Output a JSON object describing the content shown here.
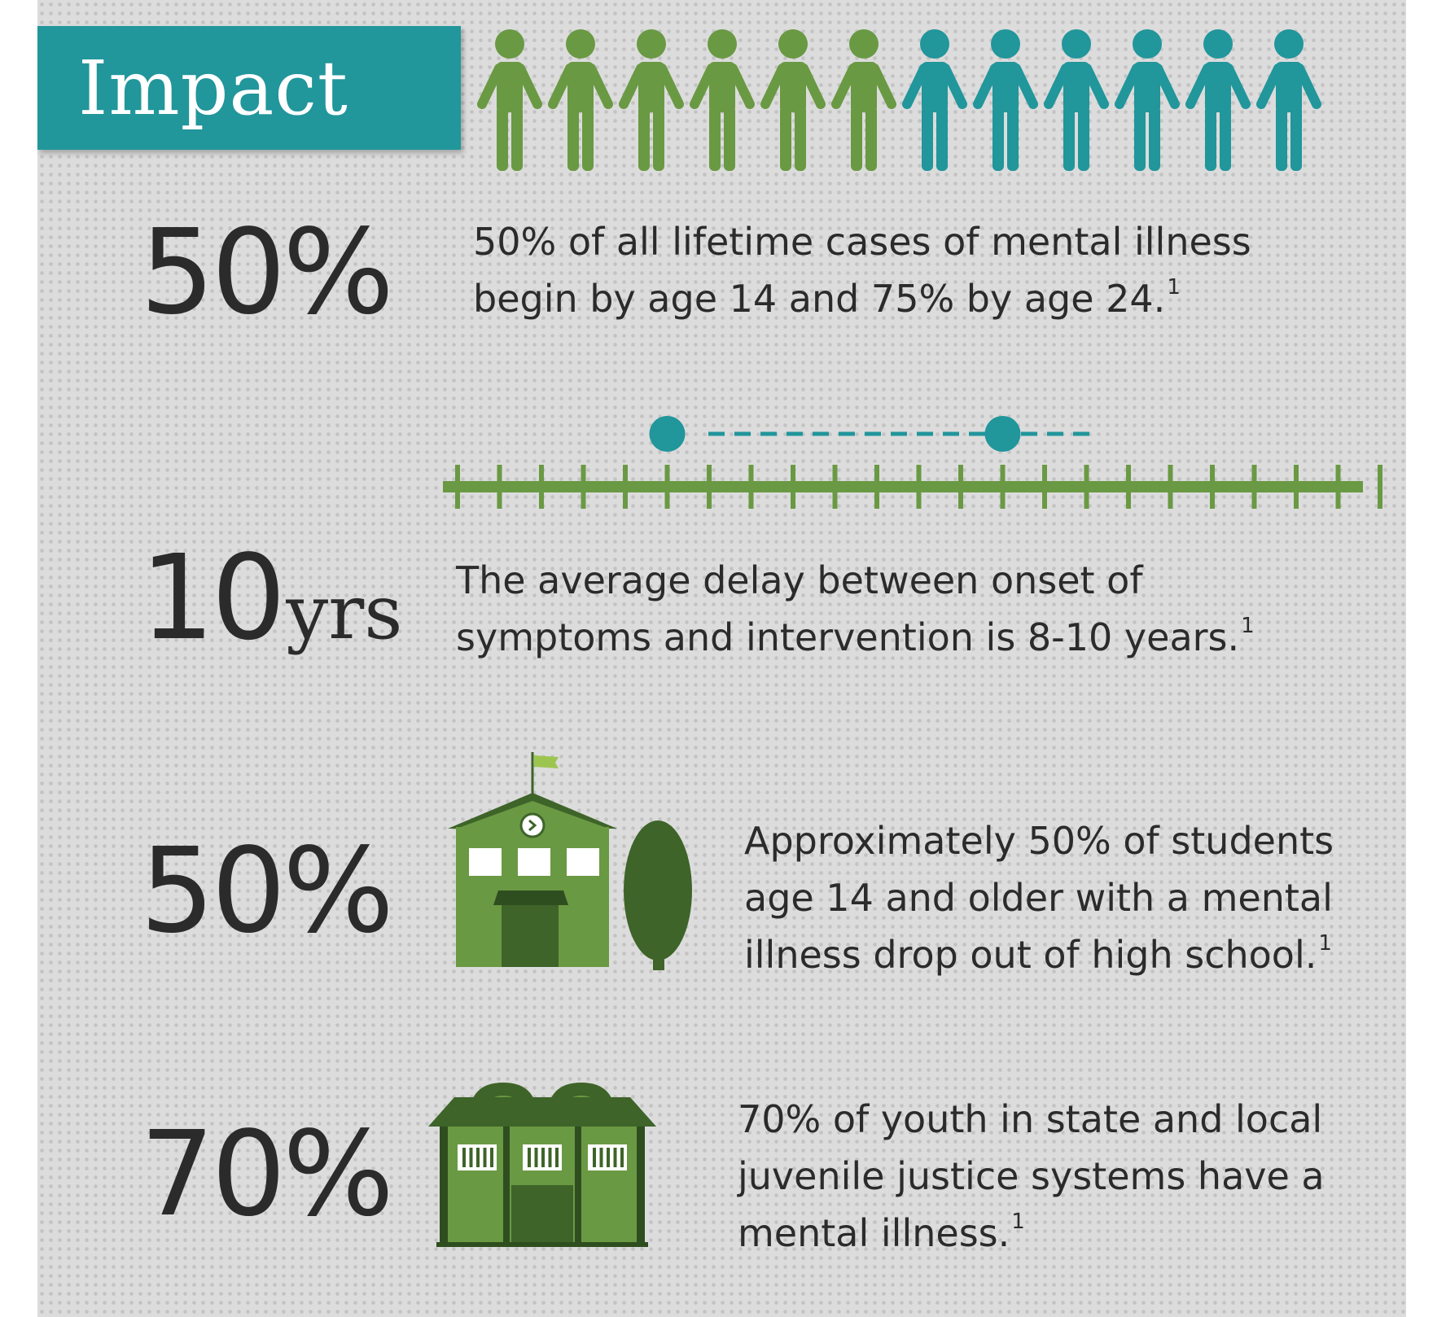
{
  "header": {
    "title": "Impact"
  },
  "colors": {
    "teal": "#21969b",
    "green": "#6a9943",
    "dark_green": "#3e6429",
    "light_green": "#9cc54f",
    "text": "#2b2b2b"
  },
  "people_graphic": {
    "icon": "person-icon",
    "total": 12,
    "green_count": 6,
    "teal_count": 6
  },
  "stats": [
    {
      "value": "50%",
      "unit": "",
      "text": [
        "50% of all lifetime cases of mental illness",
        "begin by age 14 and 75% by age 24."
      ],
      "footnote": "1"
    },
    {
      "value": "10",
      "unit": "yrs",
      "text": [
        "The average delay between onset of",
        "symptoms and intervention is 8-10 years."
      ],
      "footnote": "1"
    },
    {
      "value": "50%",
      "unit": "",
      "text": [
        "Approximately 50% of students",
        "age 14 and older with a mental",
        "illness drop out of high school."
      ],
      "footnote": "1"
    },
    {
      "value": "70%",
      "unit": "",
      "text": [
        "70% of youth in state and local",
        "juvenile justice systems have a",
        "mental illness."
      ],
      "footnote": "1"
    }
  ],
  "icons": {
    "timeline": "timeline-icon",
    "school": "school-building-icon",
    "tree": "tree-icon",
    "jail": "jail-building-icon"
  }
}
